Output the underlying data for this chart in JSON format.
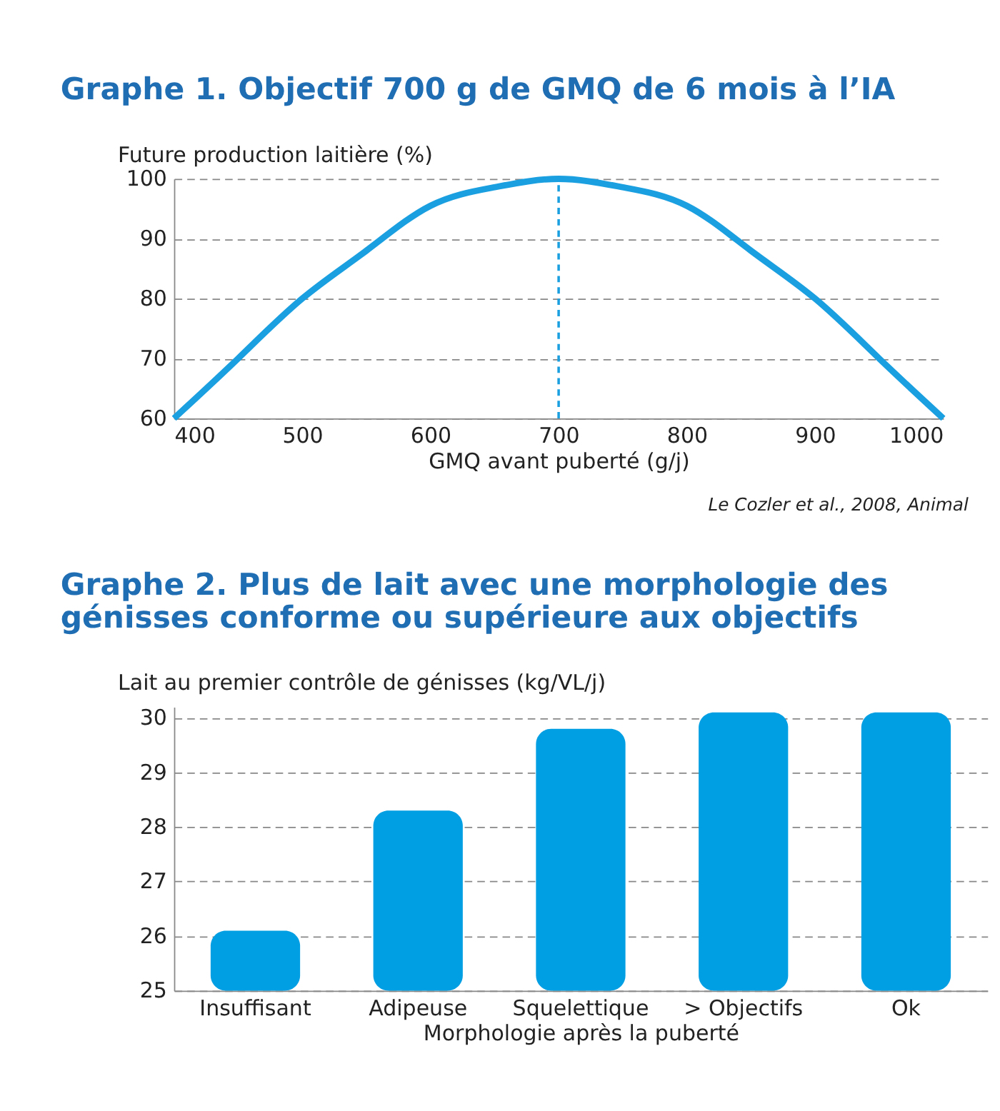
{
  "chart_data": [
    {
      "type": "line",
      "title": "Graphe 1. Objectif 700 g de GMQ de 6 mois à l’IA",
      "xlabel": "GMQ avant puberté (g/j)",
      "ylabel": "Future production laitière (%)",
      "x": [
        400,
        450,
        500,
        550,
        600,
        650,
        700,
        750,
        800,
        850,
        900,
        950,
        1000
      ],
      "series": [
        {
          "color": "#1a9fe0",
          "values": [
            60,
            70,
            80,
            88,
            95.5,
            98.6,
            100,
            98.6,
            95.5,
            88,
            80,
            70,
            60
          ]
        }
      ],
      "xlim": [
        400,
        1000
      ],
      "xticks": [
        400,
        500,
        600,
        700,
        800,
        900,
        1000
      ],
      "ylim": [
        60,
        100
      ],
      "yticks": [
        60,
        70,
        80,
        90,
        100
      ],
      "grid": "y",
      "ref_lines": [
        {
          "axis": "x",
          "value": 700,
          "color": "#1a9fe0",
          "line_style": "dashed"
        }
      ],
      "annotations": [
        "Le Cozler et al., 2008, Animal"
      ]
    },
    {
      "type": "bar",
      "title": [
        "Graphe 2. Plus de lait avec une morphologie des",
        "génisses conforme ou supérieure aux objectifs"
      ],
      "xlabel": "Morphologie après la puberté",
      "ylabel": "Lait au premier contrôle de génisses (kg/VL/j)",
      "categories": [
        "Insuffisant",
        "Adipeuse",
        "Squelettique",
        "> Objectifs",
        "Ok"
      ],
      "series": [
        {
          "color": "#009fe3",
          "values": [
            26.1,
            28.3,
            29.8,
            30.1,
            30.1
          ]
        }
      ],
      "ylim": [
        25,
        30.2
      ],
      "yticks": [
        25,
        26,
        27,
        28,
        29,
        30
      ],
      "grid": "y"
    }
  ]
}
